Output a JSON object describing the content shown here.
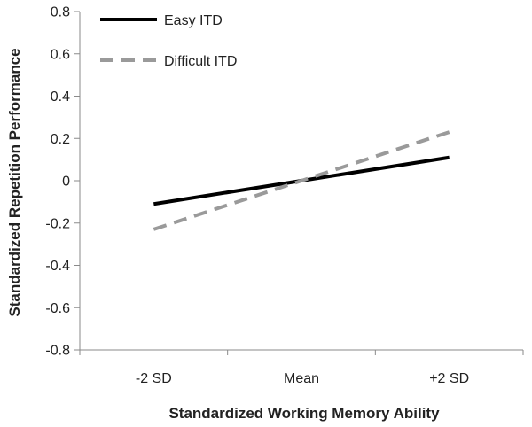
{
  "chart_data": {
    "type": "line",
    "title": "",
    "xlabel": "Standardized Working Memory Ability",
    "ylabel": "Standardized Repetition Performance",
    "categories": [
      "-2 SD",
      "Mean",
      "+2 SD"
    ],
    "ylim": [
      -0.8,
      0.8
    ],
    "yticks": [
      0.8,
      0.6,
      0.4,
      0.2,
      0,
      -0.2,
      -0.4,
      -0.6,
      -0.8
    ],
    "ytick_labels": [
      "0.8",
      "0.6",
      "0.4",
      "0.2",
      "0",
      "-0.2",
      "-0.4",
      "-0.6",
      "-0.8"
    ],
    "grid": false,
    "legend_position": "top-left",
    "series": [
      {
        "name": "Easy ITD",
        "values": [
          -0.11,
          0.0,
          0.11
        ],
        "color": "#000000",
        "style": "solid"
      },
      {
        "name": "Difficult ITD",
        "values": [
          -0.23,
          0.0,
          0.23
        ],
        "color": "#9a9a9a",
        "style": "dashed"
      }
    ]
  }
}
